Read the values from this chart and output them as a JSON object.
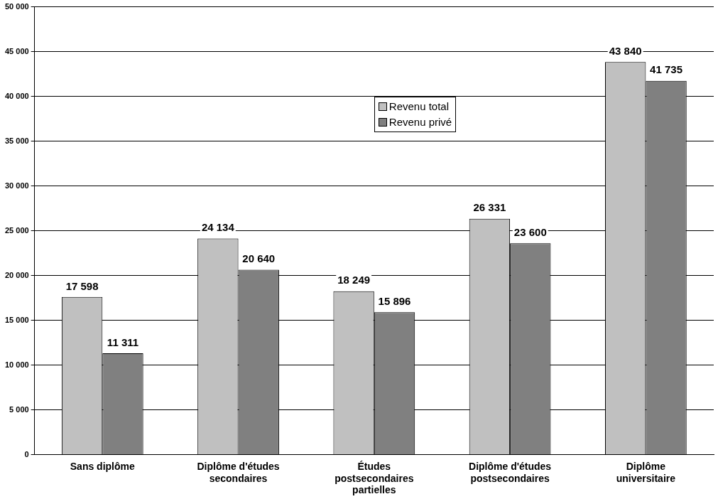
{
  "chart_data": {
    "type": "bar",
    "categories": [
      "Sans diplôme",
      "Diplôme d'études secondaires",
      "Études postsecondaires partielles",
      "Diplôme d'études postsecondaires",
      "Diplôme universitaire"
    ],
    "series": [
      {
        "name": "Revenu total",
        "color": "#c0c0c0",
        "values": [
          17598,
          24134,
          18249,
          26331,
          43840
        ],
        "value_labels": [
          "17 598",
          "24 134",
          "18 249",
          "26 331",
          "43 840"
        ]
      },
      {
        "name": "Revenu privé",
        "color": "#808080",
        "values": [
          11311,
          20640,
          15896,
          23600,
          41735
        ],
        "value_labels": [
          "11 311",
          "20 640",
          "15 896",
          "23 600",
          "41 735"
        ]
      }
    ],
    "ylim": [
      0,
      50000
    ],
    "yticks": [
      {
        "value": 0,
        "label": "0"
      },
      {
        "value": 5000,
        "label": "5 000"
      },
      {
        "value": 10000,
        "label": "10 000"
      },
      {
        "value": 15000,
        "label": "15 000"
      },
      {
        "value": 20000,
        "label": "20 000"
      },
      {
        "value": 25000,
        "label": "25 000"
      },
      {
        "value": 30000,
        "label": "30 000"
      },
      {
        "value": 35000,
        "label": "35 000"
      },
      {
        "value": 40000,
        "label": "40 000"
      },
      {
        "value": 45000,
        "label": "45 000"
      },
      {
        "value": 50000,
        "label": "50 000"
      }
    ],
    "grid": "y",
    "legend": "top"
  }
}
